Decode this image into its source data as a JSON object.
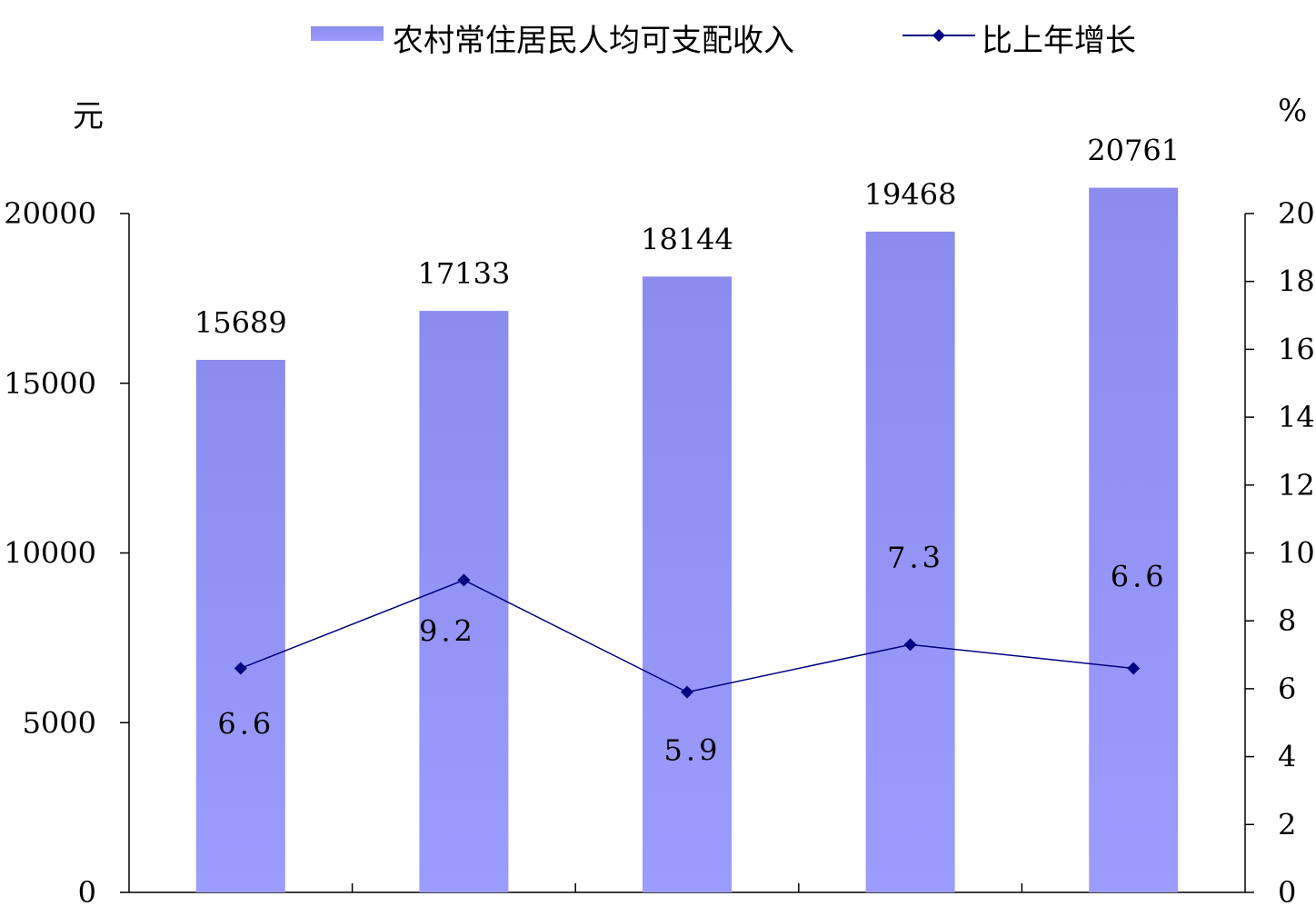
{
  "chart_data": {
    "type": "bar",
    "categories": [
      "",
      "",
      "",
      "",
      ""
    ],
    "series": [
      {
        "name": "农村常住居民人均可支配收入",
        "type": "bar",
        "axis": "left",
        "values": [
          15689,
          17133,
          18144,
          19468,
          20761
        ],
        "labels": [
          "15689",
          "17133",
          "18144",
          "19468",
          "20761"
        ]
      },
      {
        "name": "比上年增长",
        "type": "line",
        "axis": "right",
        "values": [
          6.6,
          9.2,
          5.9,
          7.3,
          6.6
        ],
        "labels": [
          "6.6",
          "9.2",
          "5.9",
          "7.3",
          "6.6"
        ]
      }
    ],
    "y_left": {
      "unit": "元",
      "ylim": [
        0,
        20000
      ],
      "ticks": [
        "0",
        "5000",
        "10000",
        "15000",
        "20000"
      ]
    },
    "y_right": {
      "unit": "%",
      "ylim": [
        0,
        20
      ],
      "ticks": [
        "0",
        "2",
        "4",
        "6",
        "8",
        "10",
        "12",
        "14",
        "16",
        "18",
        "20"
      ]
    },
    "legend": "top",
    "grid": false,
    "colors": {
      "bar_top": "#8c8cee",
      "bar_bottom": "#9c9cff",
      "line": "#000080",
      "axis": "#000000"
    }
  }
}
